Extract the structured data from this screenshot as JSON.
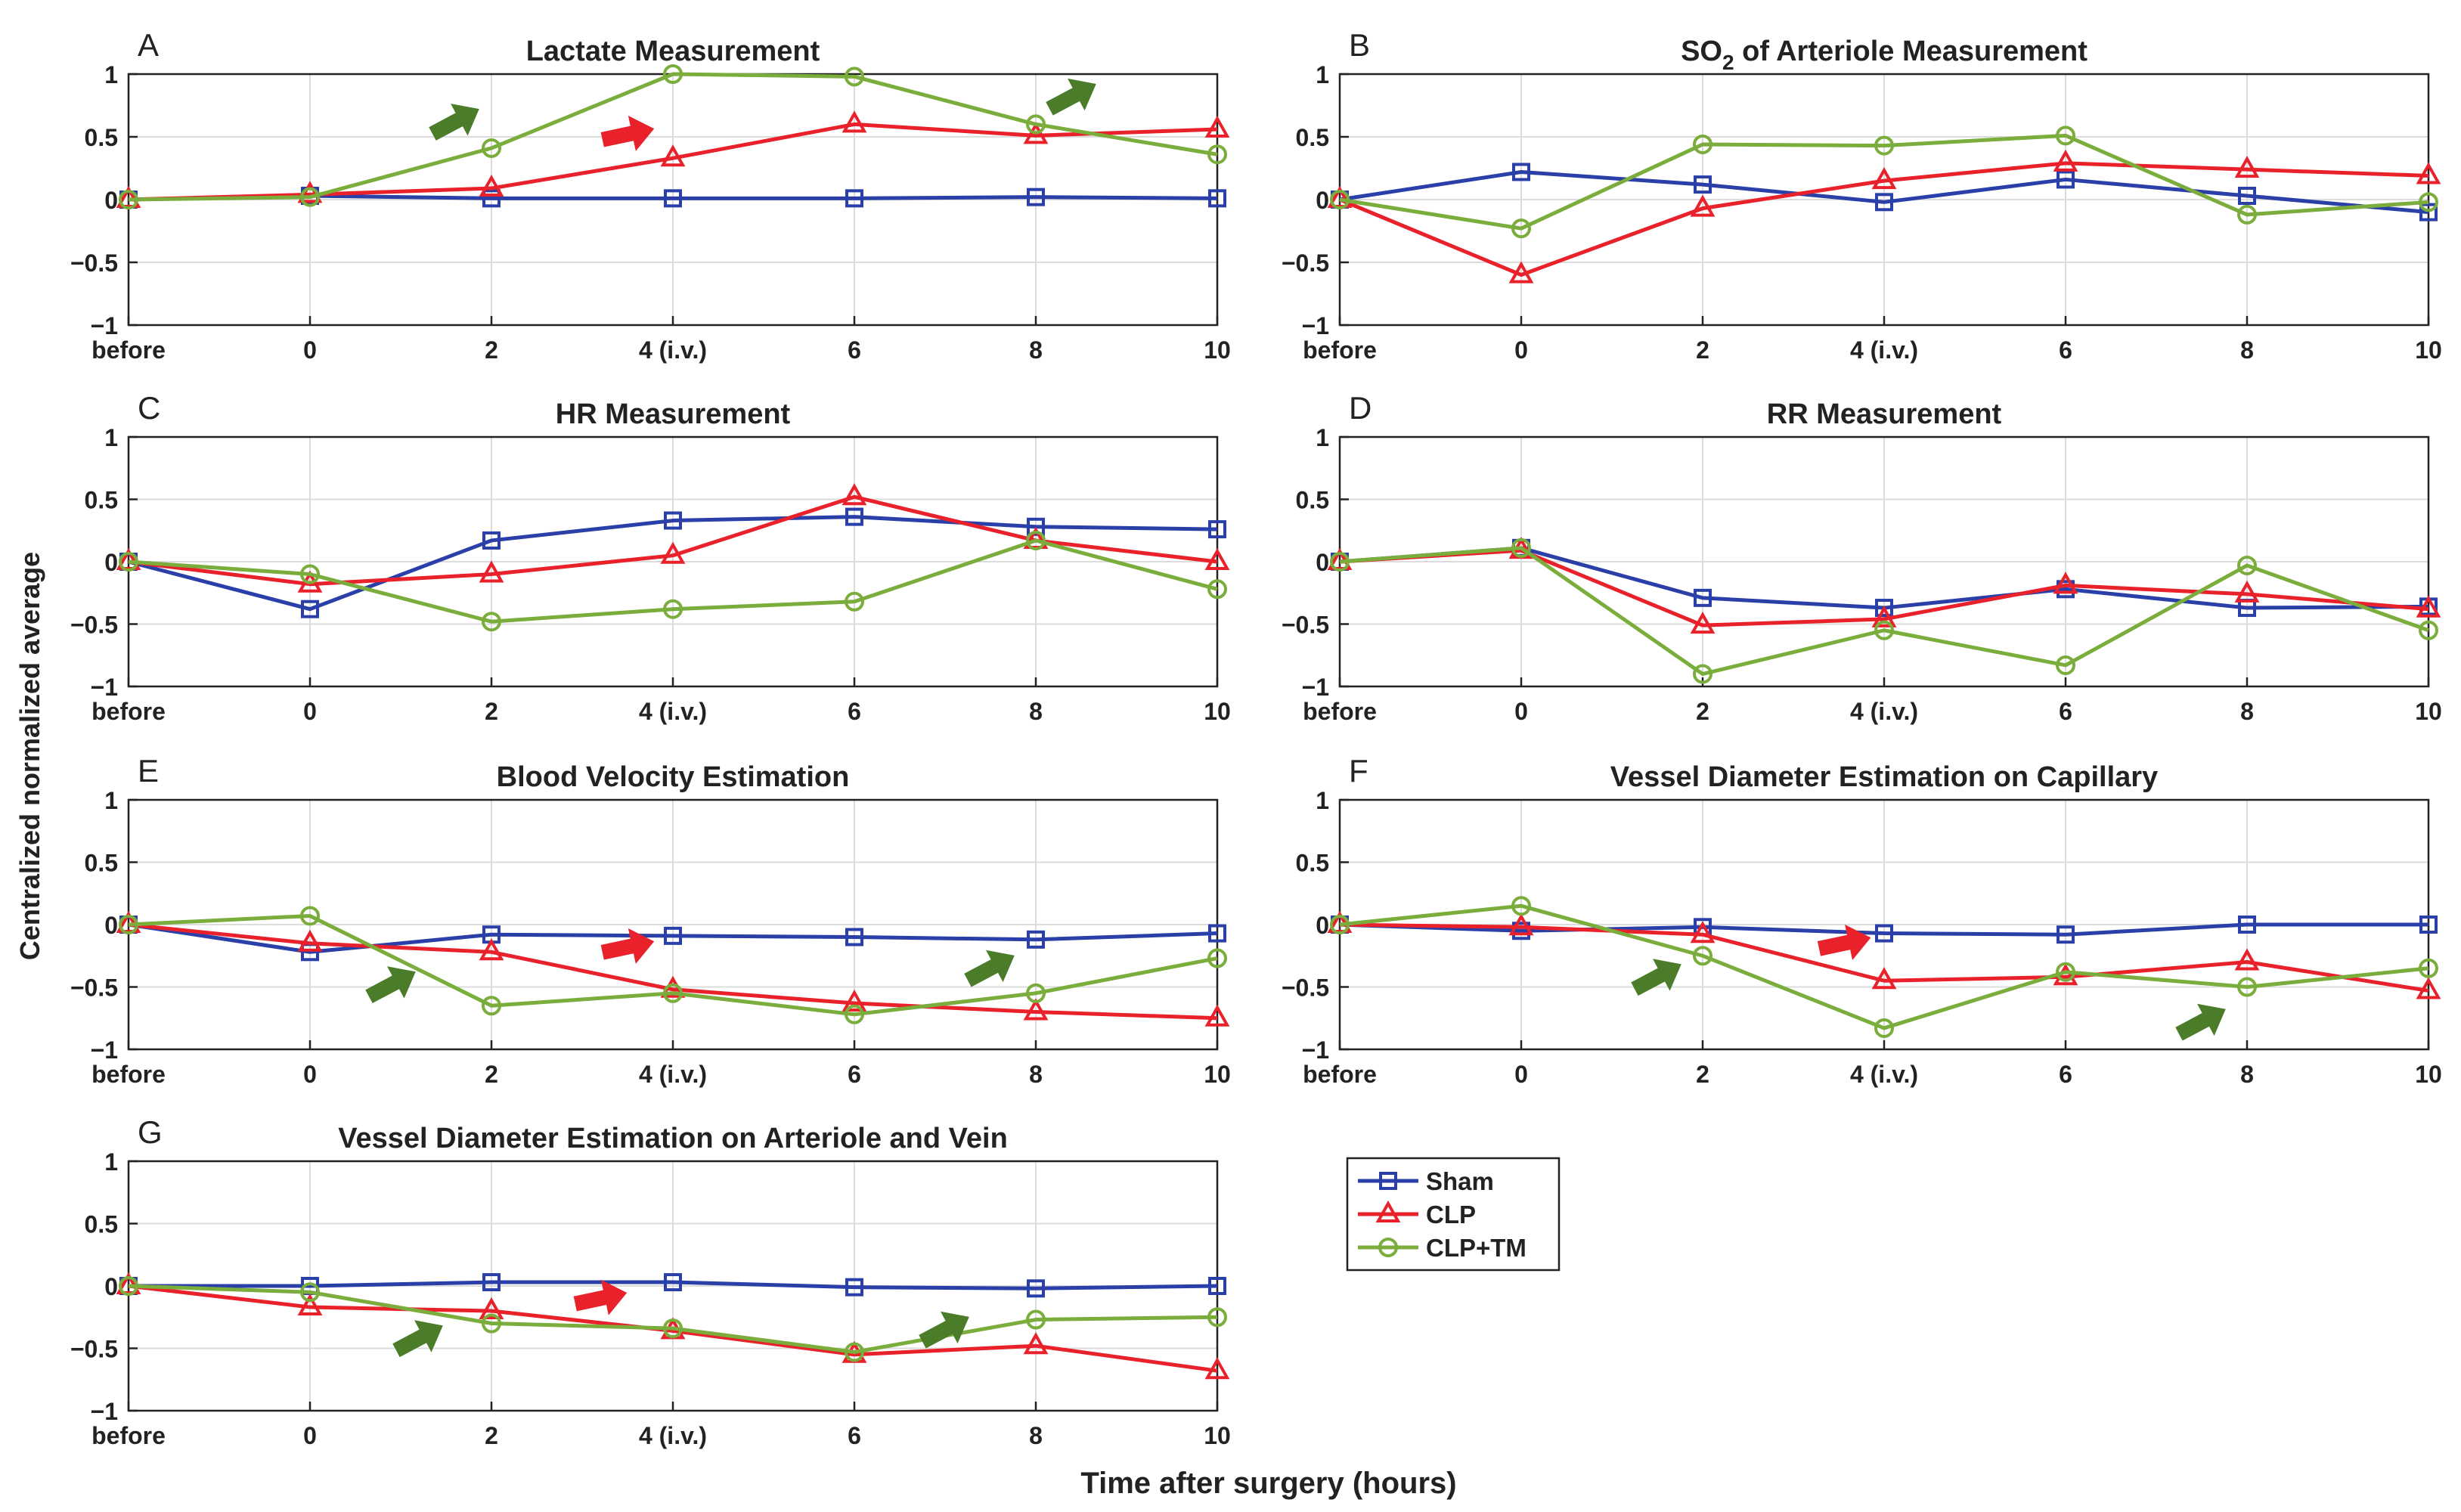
{
  "figure": {
    "ylabel": "Centralized normalized average",
    "xlabel": "Time after surgery (hours)"
  },
  "x_tick_labels": [
    "before",
    "0",
    "2",
    "4 (i.v.)",
    "6",
    "8",
    "10"
  ],
  "y_tick_labels": [
    "1",
    "0.5",
    "0",
    "−0.5",
    "−1"
  ],
  "legend": [
    {
      "name": "Sham",
      "color": "#2b3fa8",
      "marker": "square"
    },
    {
      "name": "CLP",
      "color": "#e8212b",
      "marker": "triangle"
    },
    {
      "name": "CLP+TM",
      "color": "#7aad3c",
      "marker": "circle"
    }
  ],
  "arrow_colors": {
    "red": "#e8212b",
    "green": "#4a7c2a"
  },
  "chart_data": [
    {
      "type": "line",
      "panel": "A",
      "title": "Lactate Measurement",
      "categories": [
        "before",
        "0",
        "2",
        "4 (i.v.)",
        "6",
        "8",
        "10"
      ],
      "ylim": [
        -1,
        1
      ],
      "grid": true,
      "series": [
        {
          "name": "Sham",
          "values": [
            0,
            0.03,
            0.01,
            0.01,
            0.01,
            0.02,
            0.01
          ]
        },
        {
          "name": "CLP",
          "values": [
            0,
            0.04,
            0.09,
            0.33,
            0.6,
            0.51,
            0.56
          ]
        },
        {
          "name": "CLP+TM",
          "values": [
            0,
            0.02,
            0.41,
            1.0,
            0.98,
            0.6,
            0.36
          ]
        }
      ],
      "arrows": [
        {
          "color": "green",
          "x": 1.8,
          "y": 0.62
        },
        {
          "color": "red",
          "x": 2.75,
          "y": 0.52
        },
        {
          "color": "green",
          "x": 5.2,
          "y": 0.82
        }
      ]
    },
    {
      "type": "line",
      "panel": "B",
      "title": "SO",
      "title_sub": "2",
      "title_rest": " of Arteriole Measurement",
      "categories": [
        "before",
        "0",
        "2",
        "4 (i.v.)",
        "6",
        "8",
        "10"
      ],
      "ylim": [
        -1,
        1
      ],
      "grid": true,
      "series": [
        {
          "name": "Sham",
          "values": [
            0,
            0.22,
            0.12,
            -0.02,
            0.16,
            0.03,
            -0.1
          ]
        },
        {
          "name": "CLP",
          "values": [
            0,
            -0.6,
            -0.07,
            0.15,
            0.29,
            0.24,
            0.19
          ]
        },
        {
          "name": "CLP+TM",
          "values": [
            0,
            -0.23,
            0.44,
            0.43,
            0.51,
            -0.12,
            -0.02
          ]
        }
      ],
      "arrows": []
    },
    {
      "type": "line",
      "panel": "C",
      "title": "HR Measurement",
      "categories": [
        "before",
        "0",
        "2",
        "4 (i.v.)",
        "6",
        "8",
        "10"
      ],
      "ylim": [
        -1,
        1
      ],
      "grid": true,
      "series": [
        {
          "name": "Sham",
          "values": [
            0,
            -0.38,
            0.17,
            0.33,
            0.36,
            0.28,
            0.26
          ]
        },
        {
          "name": "CLP",
          "values": [
            0,
            -0.18,
            -0.1,
            0.05,
            0.52,
            0.17,
            0.0
          ]
        },
        {
          "name": "CLP+TM",
          "values": [
            0,
            -0.1,
            -0.48,
            -0.38,
            -0.32,
            0.17,
            -0.22
          ]
        }
      ],
      "arrows": []
    },
    {
      "type": "line",
      "panel": "D",
      "title": "RR Measurement",
      "categories": [
        "before",
        "0",
        "2",
        "4 (i.v.)",
        "6",
        "8",
        "10"
      ],
      "ylim": [
        -1,
        1
      ],
      "grid": true,
      "series": [
        {
          "name": "Sham",
          "values": [
            0,
            0.11,
            -0.29,
            -0.37,
            -0.22,
            -0.37,
            -0.36
          ]
        },
        {
          "name": "CLP",
          "values": [
            0,
            0.09,
            -0.51,
            -0.46,
            -0.19,
            -0.26,
            -0.38
          ]
        },
        {
          "name": "CLP+TM",
          "values": [
            0,
            0.11,
            -0.9,
            -0.55,
            -0.83,
            -0.03,
            -0.55
          ]
        }
      ],
      "arrows": []
    },
    {
      "type": "line",
      "panel": "E",
      "title": "Blood Velocity Estimation",
      "categories": [
        "before",
        "0",
        "2",
        "4 (i.v.)",
        "6",
        "8",
        "10"
      ],
      "ylim": [
        -1,
        1
      ],
      "grid": true,
      "series": [
        {
          "name": "Sham",
          "values": [
            0,
            -0.22,
            -0.08,
            -0.09,
            -0.1,
            -0.12,
            -0.07
          ]
        },
        {
          "name": "CLP",
          "values": [
            0,
            -0.15,
            -0.22,
            -0.52,
            -0.63,
            -0.7,
            -0.75
          ]
        },
        {
          "name": "CLP+TM",
          "values": [
            0,
            0.07,
            -0.65,
            -0.55,
            -0.72,
            -0.55,
            -0.27
          ]
        }
      ],
      "arrows": [
        {
          "color": "green",
          "x": 1.45,
          "y": -0.48
        },
        {
          "color": "red",
          "x": 2.75,
          "y": -0.18
        },
        {
          "color": "green",
          "x": 4.75,
          "y": -0.35
        }
      ]
    },
    {
      "type": "line",
      "panel": "F",
      "title": "Vessel Diameter Estimation on Capillary",
      "categories": [
        "before",
        "0",
        "2",
        "4 (i.v.)",
        "6",
        "8",
        "10"
      ],
      "ylim": [
        -1,
        1
      ],
      "grid": true,
      "series": [
        {
          "name": "Sham",
          "values": [
            0,
            -0.05,
            -0.02,
            -0.07,
            -0.08,
            0.0,
            0.0
          ]
        },
        {
          "name": "CLP",
          "values": [
            0,
            -0.02,
            -0.08,
            -0.45,
            -0.42,
            -0.3,
            -0.53
          ]
        },
        {
          "name": "CLP+TM",
          "values": [
            0,
            0.15,
            -0.25,
            -0.83,
            -0.38,
            -0.5,
            -0.35
          ]
        }
      ],
      "arrows": [
        {
          "color": "green",
          "x": 1.75,
          "y": -0.42
        },
        {
          "color": "red",
          "x": 2.78,
          "y": -0.15
        },
        {
          "color": "green",
          "x": 4.75,
          "y": -0.78
        }
      ]
    },
    {
      "type": "line",
      "panel": "G",
      "title": "Vessel Diameter Estimation on Arteriole and Vein",
      "categories": [
        "before",
        "0",
        "2",
        "4 (i.v.)",
        "6",
        "8",
        "10"
      ],
      "ylim": [
        -1,
        1
      ],
      "grid": true,
      "series": [
        {
          "name": "Sham",
          "values": [
            0,
            0.0,
            0.03,
            0.03,
            -0.01,
            -0.02,
            0.0
          ]
        },
        {
          "name": "CLP",
          "values": [
            0,
            -0.17,
            -0.2,
            -0.36,
            -0.55,
            -0.48,
            -0.68
          ]
        },
        {
          "name": "CLP+TM",
          "values": [
            0,
            -0.05,
            -0.3,
            -0.34,
            -0.53,
            -0.27,
            -0.25
          ]
        }
      ],
      "arrows": [
        {
          "color": "green",
          "x": 1.6,
          "y": -0.42
        },
        {
          "color": "red",
          "x": 2.6,
          "y": -0.1
        },
        {
          "color": "green",
          "x": 4.5,
          "y": -0.35
        }
      ]
    }
  ]
}
